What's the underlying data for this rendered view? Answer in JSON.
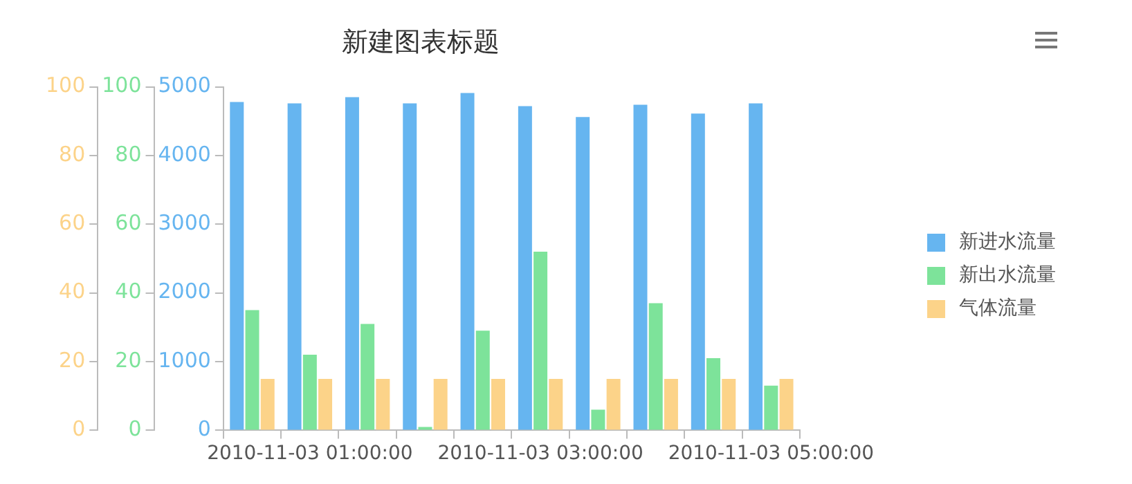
{
  "chart_data": {
    "type": "bar",
    "title": "新建图表标题",
    "categories": [
      null,
      "2010-11-03 01:00:00",
      null,
      null,
      null,
      "2010-11-03 03:00:00",
      null,
      null,
      null,
      "2010-11-03 05:00:00"
    ],
    "series": [
      {
        "name": "新进水流量",
        "color": "#66b5f0",
        "axis": "y",
        "values": [
          4780,
          4760,
          4850,
          4760,
          4910,
          4720,
          4560,
          4740,
          4610,
          4760
        ]
      },
      {
        "name": "新出水流量",
        "color": "#7de39a",
        "axis": "y2",
        "values": [
          35,
          22,
          31,
          1,
          29,
          52,
          6,
          37,
          21,
          13
        ]
      },
      {
        "name": "气体流量",
        "color": "#fcd389",
        "axis": "y3",
        "values": [
          15,
          15,
          15,
          15,
          15,
          15,
          15,
          15,
          15,
          15
        ]
      }
    ],
    "ylim": [
      0,
      5000
    ],
    "yticks": [
      0,
      1000,
      2000,
      3000,
      4000,
      5000
    ],
    "y2lim": [
      0,
      100
    ],
    "y2ticks": [
      0,
      20,
      40,
      60,
      80,
      100
    ],
    "y3lim": [
      0,
      100
    ],
    "y3ticks": [
      0,
      20,
      40,
      60,
      80,
      100
    ],
    "legend": "right",
    "grid": false
  }
}
